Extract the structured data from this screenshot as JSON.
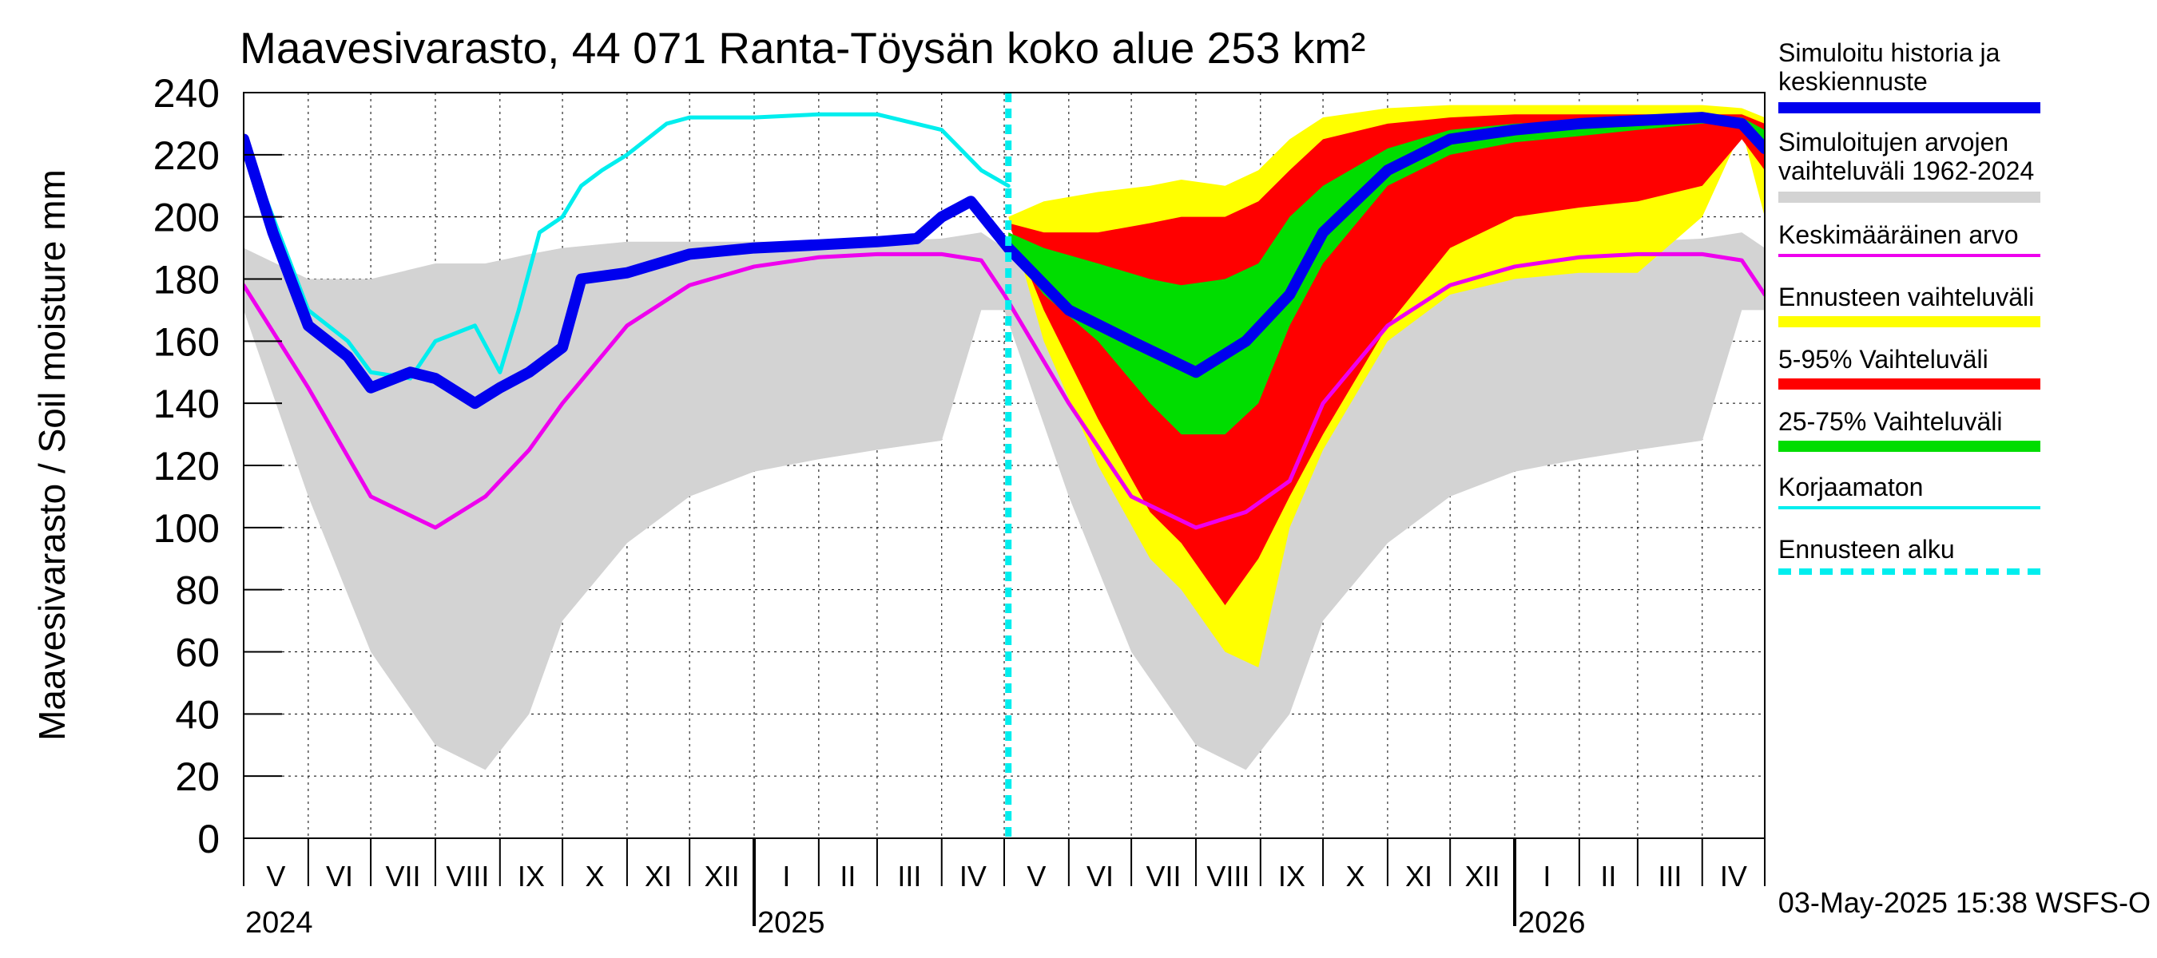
{
  "chart_data": {
    "type": "area",
    "title": "Maavesivarasto, 44 071 Ranta-Töysän koko alue 253 km²",
    "ylabel": "Maavesivarasto / Soil moisture   mm",
    "ylim": [
      0,
      240
    ],
    "yticks": [
      0,
      20,
      40,
      60,
      80,
      100,
      120,
      140,
      160,
      180,
      200,
      220,
      240
    ],
    "grid": true,
    "legend_position": "right",
    "months": [
      "V",
      "VI",
      "VII",
      "VIII",
      "IX",
      "X",
      "XI",
      "XII",
      "I",
      "II",
      "III",
      "IV",
      "V",
      "VI",
      "VII",
      "VIII",
      "IX",
      "X",
      "XI",
      "XII",
      "I",
      "II",
      "III",
      "IV"
    ],
    "years": [
      "2024",
      "2025",
      "2026"
    ],
    "x_start": "2024-05-01",
    "x_end": "2026-05-01",
    "forecast_start": "2025-05-03",
    "timestamp": "03-May-2025 15:38 WSFS-O",
    "legend": [
      {
        "label": "Simuloitu historia ja keskiennuste",
        "color": "#0000ee",
        "style": "thick"
      },
      {
        "label": "Simuloitujen arvojen vaihteluväli 1962-2024",
        "color": "#d3d3d3",
        "style": "thick"
      },
      {
        "label": "Keskimääräinen arvo",
        "color": "#ee00ee",
        "style": "thin"
      },
      {
        "label": "Ennusteen vaihteluväli",
        "color": "#ffff00",
        "style": "thick"
      },
      {
        "label": "5-95% Vaihteluväli",
        "color": "#ff0000",
        "style": "thick"
      },
      {
        "label": "25-75% Vaihteluväli",
        "color": "#00dd00",
        "style": "thick"
      },
      {
        "label": "Korjaamaton",
        "color": "#00eeee",
        "style": "thin"
      },
      {
        "label": "Ennusteen alku",
        "color": "#00eeee",
        "style": "dashed"
      }
    ],
    "series": [
      {
        "name": "Simuloitujen arvojen vaihteluväli 1962-2024",
        "kind": "band",
        "color": "#d3d3d3",
        "x": [
          "2024-05-01",
          "2024-06-01",
          "2024-07-01",
          "2024-08-01",
          "2024-08-25",
          "2024-09-15",
          "2024-10-01",
          "2024-11-01",
          "2024-12-01",
          "2025-01-01",
          "2025-02-01",
          "2025-03-01",
          "2025-04-01",
          "2025-04-20",
          "2025-05-01",
          "2025-06-01",
          "2025-07-01",
          "2025-08-01",
          "2025-08-25",
          "2025-09-15",
          "2025-10-01",
          "2025-11-01",
          "2025-12-01",
          "2026-01-01",
          "2026-02-01",
          "2026-03-01",
          "2026-04-01",
          "2026-04-20",
          "2026-05-01"
        ],
        "low": [
          170,
          110,
          60,
          30,
          22,
          40,
          70,
          95,
          110,
          118,
          122,
          125,
          128,
          170,
          170,
          110,
          60,
          30,
          22,
          40,
          70,
          95,
          110,
          118,
          122,
          125,
          128,
          170,
          170
        ],
        "high": [
          190,
          180,
          180,
          185,
          185,
          188,
          190,
          192,
          192,
          192,
          192,
          192,
          193,
          195,
          190,
          180,
          180,
          185,
          185,
          188,
          190,
          192,
          192,
          192,
          192,
          192,
          193,
          195,
          190
        ]
      },
      {
        "name": "Ennusteen vaihteluväli",
        "kind": "band",
        "color": "#ffff00",
        "x": [
          "2025-05-03",
          "2025-05-20",
          "2025-06-15",
          "2025-07-10",
          "2025-07-25",
          "2025-08-15",
          "2025-08-31",
          "2025-09-15",
          "2025-10-01",
          "2025-11-01",
          "2025-12-01",
          "2026-01-01",
          "2026-02-01",
          "2026-03-01",
          "2026-04-01",
          "2026-04-20",
          "2026-05-01"
        ],
        "low": [
          200,
          160,
          120,
          90,
          80,
          60,
          55,
          100,
          125,
          160,
          175,
          180,
          182,
          182,
          200,
          228,
          200
        ],
        "high": [
          200,
          205,
          208,
          210,
          212,
          210,
          215,
          225,
          232,
          235,
          236,
          236,
          236,
          236,
          236,
          235,
          232
        ]
      },
      {
        "name": "5-95% Vaihteluväli",
        "kind": "band",
        "color": "#ff0000",
        "x": [
          "2025-05-03",
          "2025-05-20",
          "2025-06-15",
          "2025-07-10",
          "2025-07-25",
          "2025-08-15",
          "2025-08-31",
          "2025-09-15",
          "2025-10-01",
          "2025-11-01",
          "2025-12-01",
          "2026-01-01",
          "2026-02-01",
          "2026-03-01",
          "2026-04-01",
          "2026-04-20",
          "2026-05-01"
        ],
        "low": [
          198,
          170,
          135,
          105,
          95,
          75,
          90,
          110,
          130,
          165,
          190,
          200,
          203,
          205,
          210,
          225,
          215
        ],
        "high": [
          198,
          195,
          195,
          198,
          200,
          200,
          205,
          215,
          225,
          230,
          232,
          233,
          233,
          233,
          233,
          233,
          230
        ]
      },
      {
        "name": "25-75% Vaihteluväli",
        "kind": "band",
        "color": "#00dd00",
        "x": [
          "2025-05-03",
          "2025-05-20",
          "2025-06-15",
          "2025-07-10",
          "2025-07-25",
          "2025-08-15",
          "2025-08-31",
          "2025-09-15",
          "2025-10-01",
          "2025-11-01",
          "2025-12-01",
          "2026-01-01",
          "2026-02-01",
          "2026-03-01",
          "2026-04-01",
          "2026-04-20",
          "2026-05-01"
        ],
        "low": [
          190,
          175,
          160,
          140,
          130,
          130,
          140,
          165,
          185,
          210,
          220,
          224,
          226,
          228,
          230,
          230,
          220
        ],
        "high": [
          195,
          190,
          185,
          180,
          178,
          180,
          185,
          200,
          210,
          222,
          228,
          230,
          231,
          232,
          232,
          232,
          228
        ]
      },
      {
        "name": "Keskimääräinen arvo",
        "kind": "line",
        "color": "#ee00ee",
        "x": [
          "2024-05-01",
          "2024-06-01",
          "2024-07-01",
          "2024-08-01",
          "2024-08-25",
          "2024-09-15",
          "2024-10-01",
          "2024-11-01",
          "2024-12-01",
          "2025-01-01",
          "2025-02-01",
          "2025-03-01",
          "2025-04-01",
          "2025-04-20",
          "2025-05-01",
          "2025-06-01",
          "2025-07-01",
          "2025-08-01",
          "2025-08-25",
          "2025-09-15",
          "2025-10-01",
          "2025-11-01",
          "2025-12-01",
          "2026-01-01",
          "2026-02-01",
          "2026-03-01",
          "2026-04-01",
          "2026-04-20",
          "2026-05-01"
        ],
        "y": [
          178,
          145,
          110,
          100,
          110,
          125,
          140,
          165,
          178,
          184,
          187,
          188,
          188,
          186,
          175,
          140,
          110,
          100,
          105,
          115,
          140,
          165,
          178,
          184,
          187,
          188,
          188,
          186,
          175
        ]
      },
      {
        "name": "Korjaamaton",
        "kind": "line",
        "color": "#00eeee",
        "x": [
          "2024-05-01",
          "2024-05-15",
          "2024-06-01",
          "2024-06-20",
          "2024-07-01",
          "2024-07-20",
          "2024-08-01",
          "2024-08-20",
          "2024-09-01",
          "2024-09-10",
          "2024-09-20",
          "2024-10-01",
          "2024-10-10",
          "2024-10-20",
          "2024-11-01",
          "2024-11-20",
          "2024-12-01",
          "2025-01-01",
          "2025-02-01",
          "2025-03-01",
          "2025-04-01",
          "2025-04-20",
          "2025-05-03"
        ],
        "y": [
          225,
          200,
          170,
          160,
          150,
          148,
          160,
          165,
          150,
          170,
          195,
          200,
          210,
          215,
          220,
          230,
          232,
          232,
          233,
          233,
          228,
          215,
          210
        ]
      },
      {
        "name": "Simuloitu historia ja keskiennuste",
        "kind": "line",
        "color": "#0000ee",
        "x": [
          "2024-05-01",
          "2024-05-15",
          "2024-06-01",
          "2024-06-20",
          "2024-07-01",
          "2024-07-20",
          "2024-08-01",
          "2024-08-20",
          "2024-09-01",
          "2024-09-15",
          "2024-10-01",
          "2024-10-10",
          "2024-11-01",
          "2024-12-01",
          "2025-01-01",
          "2025-02-01",
          "2025-03-01",
          "2025-03-20",
          "2025-04-01",
          "2025-04-15",
          "2025-05-03",
          "2025-06-01",
          "2025-07-01",
          "2025-08-01",
          "2025-08-25",
          "2025-09-15",
          "2025-10-01",
          "2025-11-01",
          "2025-12-01",
          "2026-01-01",
          "2026-02-01",
          "2026-03-01",
          "2026-04-01",
          "2026-04-20",
          "2026-05-01"
        ],
        "y": [
          225,
          195,
          165,
          155,
          145,
          150,
          148,
          140,
          145,
          150,
          158,
          180,
          182,
          188,
          190,
          191,
          192,
          193,
          200,
          205,
          190,
          170,
          160,
          150,
          160,
          175,
          195,
          215,
          225,
          228,
          230,
          231,
          232,
          230,
          222
        ]
      }
    ]
  }
}
